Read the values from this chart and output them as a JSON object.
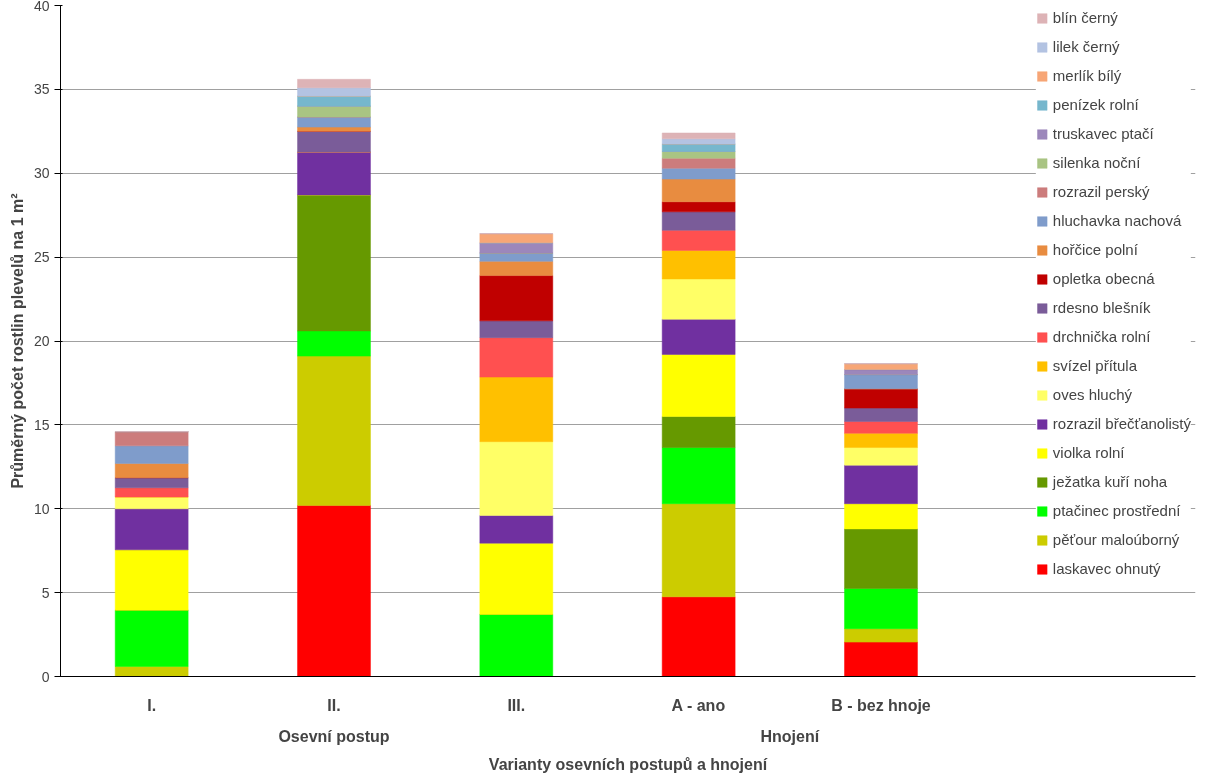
{
  "chart_data": {
    "type": "bar",
    "stacked": true,
    "xlabel": "Varianty osevních postupů a hnojení",
    "ylabel": "Průměrný počet rostlin plevelů na 1 m²",
    "categories": [
      "I.",
      "II.",
      "III.",
      "A - ano",
      "B - bez hnoje"
    ],
    "annotations": [
      "Osevní postup",
      "Hnojení"
    ],
    "ylim": [
      0,
      40
    ],
    "yticks": [
      0,
      5,
      10,
      15,
      20,
      25,
      30,
      35,
      40
    ],
    "grid": "y",
    "legend": "right",
    "series": [
      {
        "name": "laskavec ohnutý",
        "color": "#ff0000",
        "values": [
          0,
          10.2,
          0,
          4.75,
          2.05
        ]
      },
      {
        "name": "pěťour maloúborný",
        "color": "#cccc00",
        "values": [
          0.6,
          8.9,
          0,
          5.55,
          0.8
        ]
      },
      {
        "name": "ptačinec prostřední",
        "color": "#00ff00",
        "values": [
          3.35,
          1.5,
          3.7,
          3.35,
          2.4
        ]
      },
      {
        "name": "ježatka kuří noha",
        "color": "#669900",
        "values": [
          0,
          8.1,
          0,
          1.85,
          3.55
        ]
      },
      {
        "name": "violka rolní",
        "color": "#ffff00",
        "values": [
          3.6,
          0,
          4.25,
          3.7,
          1.5
        ]
      },
      {
        "name": "rozrazil břečťanolistý",
        "color": "#7030a0",
        "values": [
          2.45,
          2.55,
          1.65,
          2.1,
          2.3
        ]
      },
      {
        "name": "oves hluchý",
        "color": "#ffff66",
        "values": [
          0.7,
          0,
          4.4,
          2.4,
          1.05
        ]
      },
      {
        "name": "svízel přítula",
        "color": "#ffc000",
        "values": [
          0,
          0,
          3.85,
          1.7,
          0.85
        ]
      },
      {
        "name": "drchnička rolní",
        "color": "#ff5050",
        "values": [
          0.55,
          0,
          2.35,
          1.2,
          0.7
        ]
      },
      {
        "name": "rdesno blešník",
        "color": "#7a5c99",
        "values": [
          0.6,
          1.25,
          1.0,
          1.1,
          0.8
        ]
      },
      {
        "name": "opletka obecná",
        "color": "#c00000",
        "values": [
          0,
          0,
          2.7,
          0.6,
          1.15
        ]
      },
      {
        "name": "hořčice polní",
        "color": "#e88c40",
        "values": [
          0.85,
          0.25,
          0.85,
          1.35,
          0
        ]
      },
      {
        "name": "hluchavka nachová",
        "color": "#7f9ccb",
        "values": [
          1.05,
          0.6,
          0.5,
          0.65,
          0.85
        ]
      },
      {
        "name": "rozrazil perský",
        "color": "#cc7c7c",
        "values": [
          0.85,
          0,
          0,
          0.6,
          0
        ]
      },
      {
        "name": "silenka noční",
        "color": "#a9c483",
        "values": [
          0,
          0.65,
          0,
          0.4,
          0
        ]
      },
      {
        "name": "truskavec ptačí",
        "color": "#9c87bb",
        "values": [
          0,
          0,
          0.6,
          0,
          0.3
        ]
      },
      {
        "name": "penízek rolní",
        "color": "#76b7cd",
        "values": [
          0,
          0.6,
          0,
          0.45,
          0
        ]
      },
      {
        "name": "merlík bílý",
        "color": "#f7a676",
        "values": [
          0,
          0,
          0.55,
          0,
          0.35
        ]
      },
      {
        "name": "lilek černý",
        "color": "#b3c3e2",
        "values": [
          0,
          0.5,
          0,
          0.3,
          0
        ]
      },
      {
        "name": "blín černý",
        "color": "#ddb3b6",
        "values": [
          0,
          0.5,
          0,
          0.35,
          0
        ]
      }
    ]
  }
}
